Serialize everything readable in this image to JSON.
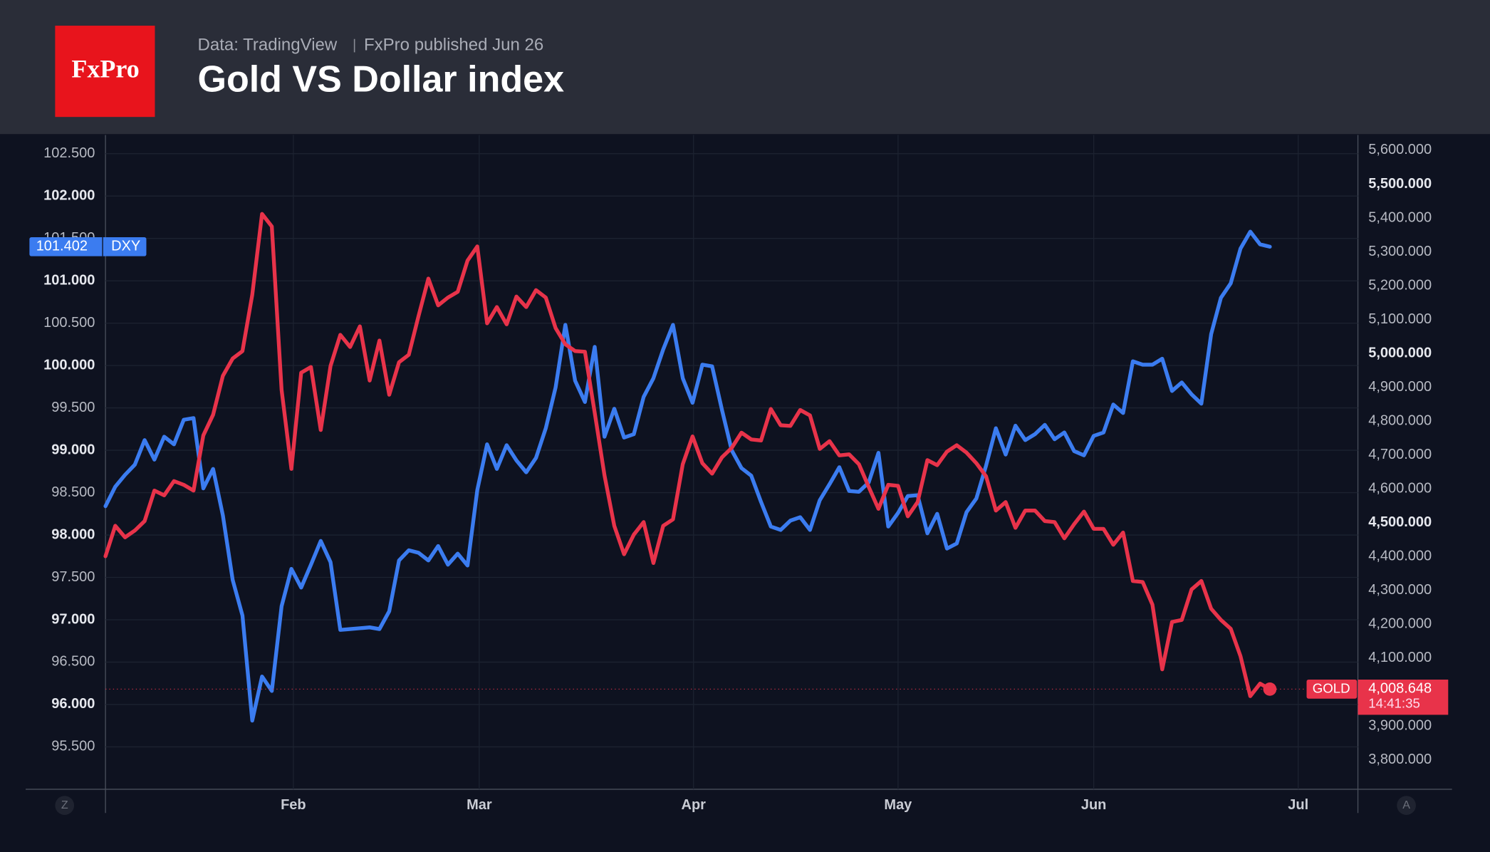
{
  "chart_data": {
    "type": "line",
    "logo": "FxPro",
    "source": "Data: TradingView",
    "subtitle": "FxPro published Jun 26",
    "title": "Gold VS Dollar index",
    "x": [
      0,
      1,
      2,
      3,
      4,
      5,
      6,
      7,
      8,
      9,
      10,
      11,
      12,
      13,
      14,
      15,
      16,
      17,
      18,
      19,
      20,
      21,
      22,
      23,
      24,
      25,
      26,
      27,
      28,
      29,
      30,
      31,
      32,
      33,
      34,
      35,
      36,
      37,
      38,
      39,
      40,
      41,
      42,
      43,
      44,
      45,
      46,
      47,
      48,
      49,
      50,
      51,
      52,
      53,
      54,
      55,
      56,
      57,
      58,
      59,
      60,
      61,
      62,
      63,
      64,
      65,
      66,
      67,
      68,
      69,
      70,
      71,
      72,
      73,
      74,
      75,
      76,
      77,
      78,
      79,
      80,
      81,
      82,
      83,
      84,
      85,
      86,
      87,
      88,
      89,
      90,
      91,
      92,
      93,
      94,
      95,
      96,
      97,
      98,
      99,
      100,
      101,
      102,
      103,
      104,
      105,
      106,
      107,
      108,
      109,
      110,
      111,
      112,
      113,
      114,
      115,
      116,
      117,
      118,
      119
    ],
    "xlim": [
      0,
      128
    ],
    "xticks": [
      {
        "value": 19.2,
        "label": "Feb"
      },
      {
        "value": 38.2,
        "label": "Mar"
      },
      {
        "value": 60.1,
        "label": "Apr"
      },
      {
        "value": 81.0,
        "label": "May"
      },
      {
        "value": 101.0,
        "label": "Jun"
      },
      {
        "value": 121.9,
        "label": "Jul"
      }
    ],
    "ylim": [
      95.0,
      102.72
    ],
    "yticks": [
      {
        "value": 95.5,
        "label": "95.500"
      },
      {
        "value": 96,
        "label": "96.000"
      },
      {
        "value": 96.5,
        "label": "96.500"
      },
      {
        "value": 97,
        "label": "97.000"
      },
      {
        "value": 97.5,
        "label": "97.500"
      },
      {
        "value": 98,
        "label": "98.000"
      },
      {
        "value": 98.5,
        "label": "98.500"
      },
      {
        "value": 99,
        "label": "99.000"
      },
      {
        "value": 99.5,
        "label": "99.500"
      },
      {
        "value": 100,
        "label": "100.000"
      },
      {
        "value": 100.5,
        "label": "100.500"
      },
      {
        "value": 101,
        "label": "101.000"
      },
      {
        "value": 101.5,
        "label": "101.500"
      },
      {
        "value": 102,
        "label": "102.000"
      },
      {
        "value": 102.5,
        "label": "102.500"
      }
    ],
    "y2lim": [
      3713,
      5645
    ],
    "y2ticks": [
      {
        "value": 3800,
        "label": "3,800.000"
      },
      {
        "value": 3900,
        "label": "3,900.000"
      },
      {
        "value": 4000,
        "label": "4,000.000"
      },
      {
        "value": 4100,
        "label": "4,100.000"
      },
      {
        "value": 4200,
        "label": "4,200.000"
      },
      {
        "value": 4300,
        "label": "4,300.000"
      },
      {
        "value": 4400,
        "label": "4,400.000"
      },
      {
        "value": 4500,
        "label": "4,500.000"
      },
      {
        "value": 4600,
        "label": "4,600.000"
      },
      {
        "value": 4700,
        "label": "4,700.000"
      },
      {
        "value": 4800,
        "label": "4,800.000"
      },
      {
        "value": 4900,
        "label": "4,900.000"
      },
      {
        "value": 5000,
        "label": "5,000.000"
      },
      {
        "value": 5100,
        "label": "5,100.000"
      },
      {
        "value": 5200,
        "label": "5,200.000"
      },
      {
        "value": 5300,
        "label": "5,300.000"
      },
      {
        "value": 5400,
        "label": "5,400.000"
      },
      {
        "value": 5500,
        "label": "5,500.000"
      },
      {
        "value": 5600,
        "label": "5,600.000"
      }
    ],
    "grid": true,
    "series": [
      {
        "name": "DXY",
        "color": "#3b7cf0",
        "last_label": "101.402",
        "values": [
          98.34,
          98.57,
          98.71,
          98.83,
          99.12,
          98.89,
          99.16,
          99.07,
          99.36,
          99.38,
          98.55,
          98.78,
          98.23,
          97.47,
          97.05,
          95.81,
          96.33,
          96.16,
          97.16,
          97.6,
          97.38,
          97.65,
          97.93,
          97.68,
          96.88,
          96.89,
          96.9,
          96.91,
          96.89,
          97.1,
          97.7,
          97.82,
          97.79,
          97.7,
          97.87,
          97.65,
          97.78,
          97.64,
          98.53,
          99.07,
          98.78,
          99.06,
          98.88,
          98.74,
          98.91,
          99.26,
          99.74,
          100.48,
          99.82,
          99.57,
          100.22,
          99.16,
          99.49,
          99.15,
          99.19,
          99.63,
          99.85,
          100.19,
          100.48,
          99.85,
          99.56,
          100.01,
          99.99,
          99.48,
          99.0,
          98.79,
          98.7,
          98.39,
          98.1,
          98.06,
          98.17,
          98.21,
          98.06,
          98.41,
          98.6,
          98.8,
          98.52,
          98.51,
          98.62,
          98.97,
          98.1,
          98.26,
          98.46,
          98.47,
          98.02,
          98.25,
          97.84,
          97.9,
          98.27,
          98.43,
          98.82,
          99.26,
          98.95,
          99.29,
          99.12,
          99.19,
          99.3,
          99.13,
          99.21,
          98.99,
          98.94,
          99.17,
          99.21,
          99.54,
          99.44,
          100.05,
          100.01,
          100.01,
          100.08,
          99.7,
          99.8,
          99.66,
          99.55,
          100.37,
          100.8,
          100.97,
          101.38,
          101.58,
          101.43,
          101.402
        ]
      },
      {
        "name": "GOLD",
        "color": "#e8334a",
        "axis": "y2",
        "last_label": "4,008.648",
        "values": [
          4401,
          4491,
          4457,
          4477,
          4505,
          4595,
          4581,
          4623,
          4612,
          4595,
          4758,
          4819,
          4934,
          4985,
          5007,
          5173,
          5412,
          5375,
          4892,
          4659,
          4943,
          4960,
          4774,
          4963,
          5055,
          5019,
          5080,
          4920,
          5038,
          4878,
          4974,
          4996,
          5111,
          5221,
          5142,
          5165,
          5182,
          5274,
          5316,
          5089,
          5137,
          5086,
          5168,
          5137,
          5187,
          5165,
          5075,
          5027,
          5007,
          5005,
          4825,
          4640,
          4491,
          4407,
          4465,
          4502,
          4381,
          4491,
          4510,
          4673,
          4755,
          4676,
          4645,
          4693,
          4721,
          4766,
          4746,
          4743,
          4836,
          4788,
          4786,
          4833,
          4817,
          4718,
          4741,
          4699,
          4702,
          4673,
          4606,
          4541,
          4612,
          4609,
          4519,
          4561,
          4685,
          4670,
          4710,
          4729,
          4707,
          4676,
          4637,
          4536,
          4561,
          4485,
          4536,
          4536,
          4505,
          4502,
          4454,
          4496,
          4533,
          4482,
          4482,
          4435,
          4471,
          4328,
          4325,
          4258,
          4067,
          4207,
          4213,
          4303,
          4328,
          4246,
          4213,
          4187,
          4106,
          3988,
          4025,
          4008.648
        ]
      }
    ],
    "countdown": "14:41:35",
    "corner_left": "Z",
    "corner_right": "A"
  }
}
